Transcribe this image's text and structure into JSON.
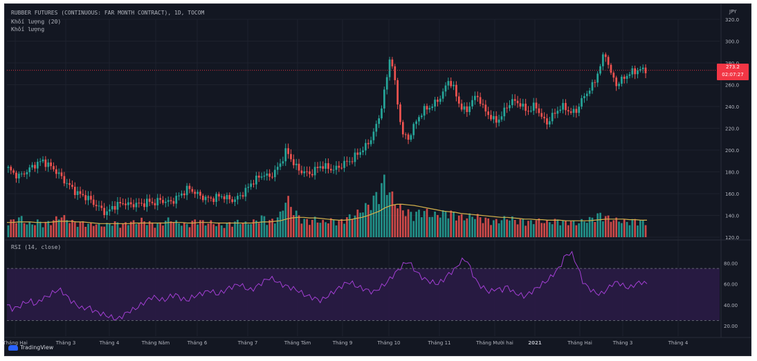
{
  "legend": {
    "symbol_line": "RUBBER FUTURES (CONTINUOUS: FAR MONTH CONTRACT), 1D, TOCOM",
    "volume_ma": "Khối lượng (20)",
    "volume": "Khối lượng",
    "rsi": "RSI (14, close)"
  },
  "currency": "JPY",
  "price_badge": {
    "price": "273.2",
    "countdown": "02:07:27"
  },
  "branding": {
    "name": "TradingView"
  },
  "colors": {
    "background": "#131722",
    "grid": "#1e222d",
    "up": "#26a69a",
    "down": "#ef5350",
    "ma": "#d4b24c",
    "rsi_line": "#a33fd4",
    "rsi_band": "#2a1b45",
    "text": "#b2b5be"
  },
  "chart_data": [
    {
      "type": "candlestick",
      "title": "RUBBER FUTURES (CONTINUOUS: FAR MONTH CONTRACT), 1D, TOCOM",
      "y_ticks": [
        120.0,
        140.0,
        160.0,
        180.0,
        200.0,
        220.0,
        240.0,
        260.0,
        280.0,
        300.0,
        320.0
      ],
      "ylim": [
        120,
        320
      ],
      "x_ticks": [
        "Tháng Hai",
        "Tháng 3",
        "Tháng 4",
        "Tháng Năm",
        "Tháng 6",
        "Tháng 7",
        "Tháng Tám",
        "Tháng 9",
        "Tháng 10",
        "Tháng 11",
        "Tháng Mười hai",
        "2021",
        "Tháng Hai",
        "Tháng 3",
        "Tháng 4"
      ],
      "close_path": [
        183,
        178,
        176,
        180,
        184,
        188,
        190,
        186,
        182,
        176,
        170,
        165,
        160,
        158,
        155,
        150,
        146,
        142,
        148,
        150,
        152,
        149,
        151,
        150,
        153,
        151,
        154,
        153,
        152,
        156,
        160,
        165,
        162,
        158,
        156,
        155,
        157,
        158,
        155,
        154,
        158,
        163,
        170,
        174,
        178,
        175,
        180,
        188,
        200,
        190,
        182,
        180,
        178,
        182,
        186,
        184,
        182,
        184,
        188,
        190,
        195,
        200,
        205,
        215,
        230,
        255,
        290,
        250,
        215,
        210,
        222,
        232,
        238,
        240,
        245,
        252,
        265,
        255,
        240,
        235,
        245,
        250,
        238,
        232,
        226,
        230,
        240,
        245,
        244,
        238,
        236,
        242,
        230,
        225,
        232,
        238,
        240,
        234,
        236,
        246,
        254,
        260,
        275,
        290,
        270,
        260,
        265,
        270,
        272,
        274,
        273
      ],
      "last_price": 273.2
    },
    {
      "type": "bar",
      "title": "Khối lượng",
      "series": [
        {
          "name": "Khối lượng (20)",
          "type": "line"
        },
        {
          "name": "Khối lượng",
          "type": "bar"
        }
      ],
      "volume_path": [
        30,
        28,
        36,
        25,
        22,
        28,
        24,
        26,
        30,
        38,
        32,
        27,
        24,
        26,
        22,
        24,
        20,
        22,
        26,
        24,
        22,
        28,
        25,
        30,
        26,
        24,
        22,
        28,
        32,
        26,
        24,
        22,
        28,
        30,
        24,
        26,
        22,
        20,
        24,
        26,
        28,
        24,
        26,
        30,
        36,
        28,
        30,
        40,
        70,
        50,
        38,
        30,
        28,
        32,
        26,
        28,
        30,
        26,
        32,
        36,
        40,
        48,
        55,
        65,
        82,
        100,
        75,
        58,
        48,
        44,
        40,
        44,
        46,
        38,
        40,
        42,
        45,
        40,
        36,
        34,
        38,
        36,
        32,
        30,
        28,
        30,
        34,
        32,
        28,
        30,
        26,
        30,
        28,
        26,
        28,
        30,
        26,
        28,
        24,
        28,
        30,
        34,
        40,
        36,
        32,
        30,
        28,
        26,
        30,
        28,
        26
      ],
      "ma_path": [
        26,
        26,
        27,
        27,
        27,
        26,
        26,
        26,
        27,
        28,
        28,
        28,
        27,
        27,
        26,
        25,
        24,
        24,
        24,
        24,
        24,
        24,
        25,
        25,
        25,
        25,
        25,
        25,
        26,
        26,
        26,
        25,
        25,
        26,
        26,
        26,
        25,
        25,
        25,
        25,
        25,
        25,
        25,
        26,
        27,
        27,
        28,
        29,
        32,
        34,
        35,
        35,
        34,
        34,
        33,
        32,
        31,
        30,
        30,
        31,
        33,
        35,
        38,
        42,
        46,
        52,
        56,
        58,
        58,
        57,
        56,
        54,
        52,
        50,
        48,
        46,
        45,
        44,
        42,
        41,
        40,
        39,
        38,
        37,
        36,
        35,
        35,
        34,
        33,
        32,
        32,
        31,
        31,
        30,
        30,
        30,
        29,
        29,
        29,
        29,
        29,
        30,
        31,
        32,
        32,
        32,
        32,
        31,
        31,
        30,
        30
      ]
    },
    {
      "type": "line",
      "title": "RSI (14, close)",
      "y_ticks": [
        20.0,
        40.0,
        60.0,
        80.0
      ],
      "ylim": [
        10,
        95
      ],
      "bands": [
        25,
        75
      ],
      "series": [
        {
          "name": "RSI (14, close)",
          "values": [
            40,
            36,
            38,
            42,
            44,
            40,
            46,
            48,
            52,
            55,
            50,
            44,
            40,
            36,
            38,
            34,
            32,
            30,
            28,
            26,
            30,
            34,
            36,
            40,
            44,
            48,
            46,
            44,
            48,
            50,
            46,
            44,
            48,
            50,
            52,
            54,
            50,
            52,
            56,
            58,
            60,
            56,
            54,
            58,
            62,
            66,
            64,
            60,
            58,
            56,
            54,
            50,
            48,
            46,
            44,
            48,
            52,
            56,
            60,
            62,
            58,
            56,
            54,
            52,
            56,
            60,
            66,
            72,
            78,
            82,
            74,
            68,
            64,
            62,
            60,
            64,
            70,
            74,
            82,
            84,
            70,
            60,
            56,
            52,
            56,
            54,
            58,
            52,
            50,
            48,
            52,
            56,
            60,
            64,
            70,
            76,
            88,
            90,
            78,
            62,
            56,
            52,
            50,
            54,
            60,
            62,
            58,
            56,
            60,
            62,
            60
          ]
        }
      ]
    }
  ]
}
